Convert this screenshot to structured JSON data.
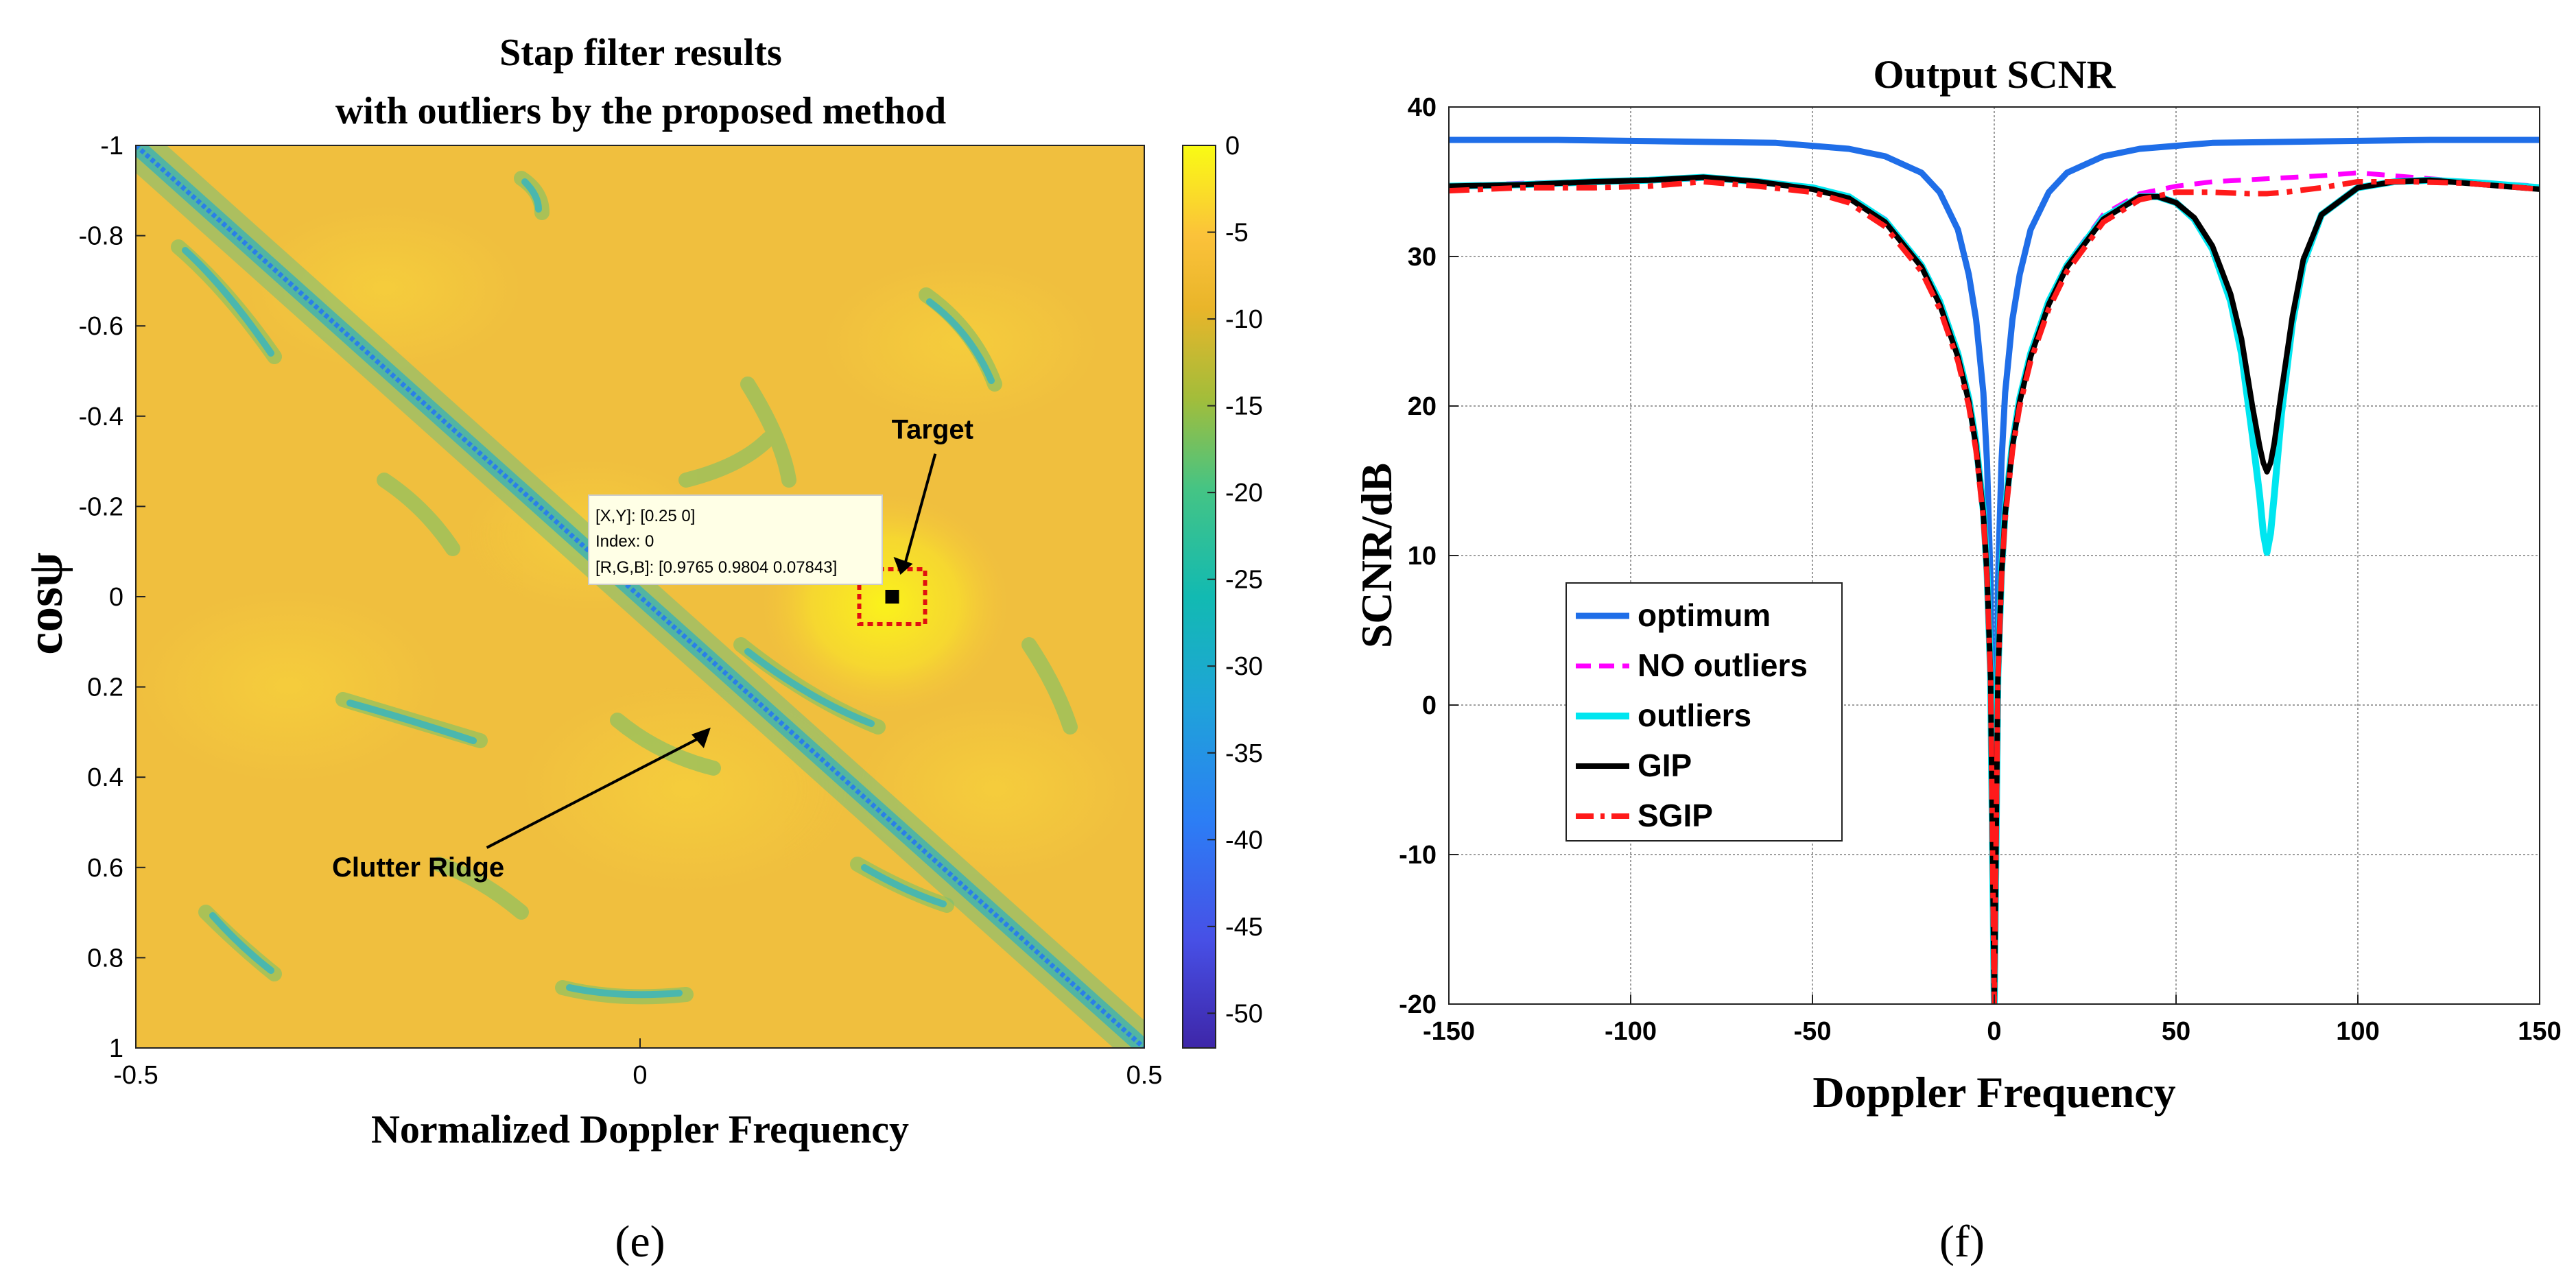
{
  "chart_data": [
    {
      "type": "heatmap",
      "panel_label": "(e)",
      "title_lines": [
        "Stap filter results",
        "with outliers by the proposed method"
      ],
      "xlabel": "Normalized Doppler Frequency",
      "ylabel": "cosψ",
      "xlim": [
        -0.5,
        0.5
      ],
      "ylim": [
        -1,
        1
      ],
      "x_ticks": [
        -0.5,
        0,
        0.5
      ],
      "y_ticks": [
        -1,
        -0.8,
        -0.6,
        -0.4,
        -0.2,
        0,
        0.2,
        0.4,
        0.6,
        0.8,
        1
      ],
      "x_tick_labels": [
        "-0.5",
        "0",
        "0.5"
      ],
      "y_tick_labels": [
        "-1",
        "-0.8",
        "-0.6",
        "-0.4",
        "-0.2",
        "0",
        "0.2",
        "0.4",
        "0.6",
        "0.8",
        "1"
      ],
      "colorbar": {
        "range": [
          -52,
          0
        ],
        "ticks": [
          0,
          -5,
          -10,
          -15,
          -20,
          -25,
          -30,
          -35,
          -40,
          -45,
          -50
        ],
        "tick_labels": [
          "0",
          "-5",
          "-10",
          "-15",
          "-20",
          "-25",
          "-30",
          "-35",
          "-40",
          "-45",
          "-50"
        ]
      },
      "clutter_ridge": {
        "x": [
          -0.5,
          0.5
        ],
        "y": [
          -1,
          1
        ]
      },
      "target": {
        "x": 0.25,
        "y": 0
      },
      "datatip": {
        "lines": [
          "[X,Y]: [0.25 0]",
          "Index: 0",
          "[R,G,B]: [0.9765 0.9804 0.07843]"
        ],
        "x": 0.25,
        "y": 0
      },
      "annotations": [
        {
          "text": "Target",
          "x": 0.29,
          "y": -0.35
        },
        {
          "text": "Clutter Ridge",
          "x": -0.22,
          "y": 0.62
        }
      ]
    },
    {
      "type": "line",
      "panel_label": "(f)",
      "title": "Output SCNR",
      "xlabel": "Doppler Frequency",
      "ylabel": "SCNR/dB",
      "xlim": [
        -150,
        150
      ],
      "ylim": [
        -20,
        40
      ],
      "x_ticks": [
        -150,
        -100,
        -50,
        0,
        50,
        100,
        150
      ],
      "y_ticks": [
        -20,
        -10,
        0,
        10,
        20,
        30,
        40
      ],
      "x_tick_labels": [
        "-150",
        "-100",
        "-50",
        "0",
        "50",
        "100",
        "150"
      ],
      "y_tick_labels": [
        "-20",
        "-10",
        "0",
        "10",
        "20",
        "30",
        "40"
      ],
      "legend_position": "left-middle",
      "series": [
        {
          "name": "optimum",
          "color": "#1f6ee8",
          "dash": "solid",
          "x": [
            -150,
            -120,
            -90,
            -60,
            -40,
            -30,
            -20,
            -15,
            -10,
            -7,
            -5,
            -3,
            -2,
            -1,
            0,
            1,
            2,
            3,
            5,
            7,
            10,
            15,
            20,
            30,
            40,
            60,
            90,
            120,
            150
          ],
          "y": [
            37.8,
            37.8,
            37.7,
            37.6,
            37.2,
            36.7,
            35.6,
            34.3,
            31.8,
            28.8,
            25.8,
            20.9,
            16.3,
            8.0,
            -20,
            8.0,
            16.3,
            20.9,
            25.8,
            28.8,
            31.8,
            34.3,
            35.6,
            36.7,
            37.2,
            37.6,
            37.7,
            37.8,
            37.8
          ]
        },
        {
          "name": "NO outliers",
          "color": "#ff00ff",
          "dash": "dash",
          "x": [
            -150,
            -130,
            -110,
            -95,
            -80,
            -65,
            -50,
            -40,
            -30,
            -20,
            -15,
            -10,
            -7,
            -5,
            -3,
            -2,
            -1,
            0,
            1,
            2,
            3,
            5,
            7,
            10,
            15,
            20,
            30,
            40,
            50,
            60,
            75,
            90,
            100,
            115,
            130,
            150
          ],
          "y": [
            34.7,
            34.9,
            35.0,
            35.1,
            35.2,
            35.0,
            34.6,
            34.0,
            32.5,
            29.5,
            27.0,
            23.5,
            20.5,
            17.5,
            13.0,
            9.0,
            2.0,
            -20,
            2.0,
            9.0,
            13.0,
            17.5,
            20.5,
            23.5,
            27.0,
            29.5,
            32.8,
            34.2,
            34.7,
            35.0,
            35.2,
            35.4,
            35.6,
            35.3,
            35.0,
            34.7
          ]
        },
        {
          "name": "outliers",
          "color": "#00e6f0",
          "dash": "solid",
          "x": [
            -150,
            -130,
            -110,
            -95,
            -80,
            -65,
            -50,
            -40,
            -30,
            -20,
            -15,
            -10,
            -7,
            -5,
            -3,
            -2,
            -1,
            0,
            1,
            2,
            3,
            5,
            7,
            10,
            15,
            20,
            30,
            40,
            45,
            50,
            55,
            60,
            65,
            68,
            71,
            73,
            74,
            75,
            76,
            77,
            79,
            82,
            85,
            90,
            100,
            110,
            120,
            135,
            150
          ],
          "y": [
            34.7,
            34.8,
            35.0,
            35.1,
            35.3,
            35.0,
            34.6,
            34.0,
            32.4,
            29.4,
            27.0,
            23.5,
            20.5,
            17.5,
            13.0,
            9.0,
            2.0,
            -20,
            2.0,
            9.0,
            13.0,
            17.5,
            20.5,
            23.5,
            27.0,
            29.4,
            32.6,
            34.0,
            34.0,
            33.6,
            32.5,
            30.5,
            27.0,
            23.5,
            18.0,
            14.0,
            11.5,
            10.2,
            11.5,
            14.0,
            19.5,
            25.5,
            29.5,
            32.8,
            34.6,
            35.0,
            35.1,
            34.9,
            34.6
          ]
        },
        {
          "name": "GIP",
          "color": "#000000",
          "dash": "solid",
          "x": [
            -150,
            -130,
            -110,
            -95,
            -80,
            -65,
            -50,
            -40,
            -30,
            -20,
            -15,
            -10,
            -7,
            -5,
            -3,
            -2,
            -1,
            0,
            1,
            2,
            3,
            5,
            7,
            10,
            15,
            20,
            30,
            40,
            45,
            50,
            55,
            60,
            65,
            68,
            71,
            73,
            74,
            75,
            76,
            77,
            79,
            82,
            85,
            90,
            100,
            110,
            120,
            135,
            150
          ],
          "y": [
            34.7,
            34.8,
            35.0,
            35.1,
            35.3,
            35.0,
            34.5,
            33.9,
            32.3,
            29.3,
            26.8,
            23.3,
            20.3,
            17.3,
            12.8,
            8.8,
            1.8,
            -20,
            1.8,
            8.8,
            12.8,
            17.3,
            20.3,
            23.3,
            26.8,
            29.3,
            32.5,
            34.0,
            34.0,
            33.6,
            32.6,
            30.7,
            27.5,
            24.5,
            20.0,
            17.3,
            16.2,
            15.6,
            16.2,
            17.5,
            21.0,
            26.0,
            29.8,
            32.8,
            34.6,
            35.0,
            35.1,
            34.8,
            34.5
          ]
        },
        {
          "name": "SGIP",
          "color": "#ff1a1a",
          "dash": "dashdot",
          "x": [
            -150,
            -130,
            -110,
            -95,
            -80,
            -65,
            -50,
            -40,
            -30,
            -20,
            -15,
            -10,
            -7,
            -5,
            -3,
            -2,
            -1,
            0,
            1,
            2,
            3,
            5,
            7,
            10,
            15,
            20,
            30,
            40,
            50,
            60,
            70,
            75,
            80,
            90,
            100,
            115,
            130,
            150
          ],
          "y": [
            34.4,
            34.6,
            34.6,
            34.7,
            35.0,
            34.7,
            34.3,
            33.6,
            32.0,
            29.0,
            26.5,
            23.0,
            20.0,
            17.0,
            12.5,
            8.5,
            1.5,
            -20,
            1.5,
            8.5,
            12.5,
            17.0,
            20.0,
            23.0,
            26.5,
            29.0,
            32.3,
            33.8,
            34.3,
            34.3,
            34.2,
            34.2,
            34.3,
            34.6,
            35.0,
            35.0,
            34.9,
            34.5
          ]
        }
      ]
    }
  ]
}
